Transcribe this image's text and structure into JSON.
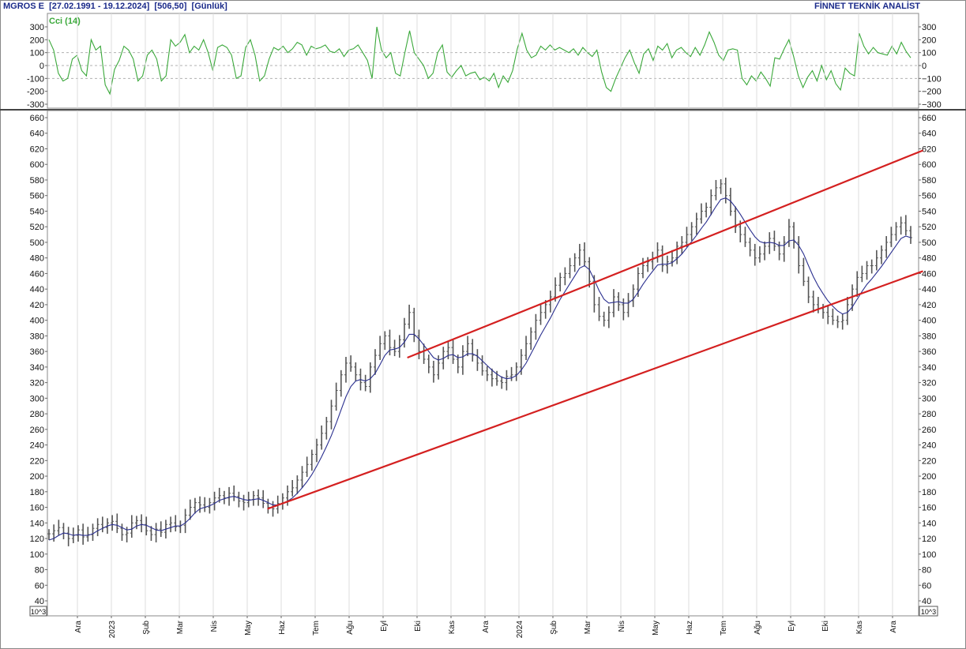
{
  "header": {
    "symbol": "MGROS E",
    "range": "[27.02.1991 - 19.12.2024]",
    "last": "[506,50]",
    "period": "[Günlük]",
    "brand": "FİNNET TEKNİK ANALİST"
  },
  "colors": {
    "cci": "#3aa83a",
    "price": "#555555",
    "ma": "#2a2f8f",
    "channel": "#d42020",
    "header": "#1a2a8a"
  },
  "chart_data": [
    {
      "type": "line",
      "name": "cci-panel",
      "series": [
        {
          "name": "Cci (14)",
          "values": [
            200,
            120,
            -60,
            -120,
            -100,
            50,
            80,
            -40,
            -80,
            200,
            120,
            150,
            -150,
            -220,
            -30,
            40,
            150,
            120,
            50,
            -120,
            -80,
            80,
            120,
            50,
            -120,
            -80,
            200,
            150,
            180,
            240,
            100,
            150,
            120,
            200,
            100,
            -40,
            140,
            160,
            140,
            80,
            -100,
            -80,
            140,
            200,
            80,
            -120,
            -80,
            50,
            140,
            120,
            150,
            100,
            130,
            180,
            160,
            80,
            150,
            130,
            140,
            160,
            110,
            100,
            130,
            70,
            120,
            130,
            160,
            100,
            40,
            -100,
            300,
            120,
            60,
            100,
            -60,
            -80,
            100,
            270,
            100,
            50,
            0,
            -100,
            -60,
            100,
            160,
            -50,
            -90,
            -40,
            0,
            -80,
            -60,
            -50,
            -110,
            -90,
            -120,
            -60,
            -170,
            -80,
            -130,
            -40,
            130,
            250,
            120,
            60,
            80,
            150,
            120,
            160,
            120,
            140,
            120,
            100,
            130,
            80,
            140,
            100,
            70,
            120,
            -50,
            -170,
            -200,
            -100,
            -20,
            60,
            120,
            20,
            -60,
            90,
            130,
            40,
            150,
            120,
            170,
            60,
            120,
            140,
            100,
            70,
            140,
            80,
            160,
            260,
            180,
            80,
            40,
            120,
            130,
            120,
            -100,
            -150,
            -80,
            -120,
            -50,
            -100,
            -160,
            60,
            50,
            130,
            200,
            70,
            -80,
            -170,
            -90,
            -40,
            -120,
            0,
            -110,
            -40,
            -140,
            -190,
            -20,
            -60,
            -80,
            250,
            150,
            90,
            140,
            100,
            90,
            80,
            150,
            90,
            180,
            110,
            60
          ]
        }
      ],
      "ylim": [
        -310,
        340
      ],
      "yticks": [
        "300",
        "200",
        "100",
        "0",
        "-100",
        "-200",
        "-300"
      ],
      "yticks_right": [
        "300",
        "200",
        "100",
        "0",
        "−100",
        "−200",
        "−300"
      ],
      "reference_lines": [
        100,
        0,
        -100
      ]
    },
    {
      "type": "line",
      "name": "price-panel",
      "x_ticks": [
        "Ara",
        "2023",
        "Şub",
        "Mar",
        "Nis",
        "May",
        "Haz",
        "Tem",
        "Ağu",
        "Eyl",
        "Eki",
        "Kas",
        "Ara",
        "2024",
        "Şub",
        "Mar",
        "Nis",
        "May",
        "Haz",
        "Tem",
        "Ağu",
        "Eyl",
        "Eki",
        "Kas",
        "Ara"
      ],
      "series": [
        {
          "name": "price",
          "values": [
            126,
            130,
            134,
            127,
            120,
            124,
            131,
            122,
            125,
            133,
            138,
            134,
            140,
            142,
            133,
            125,
            127,
            140,
            143,
            138,
            130,
            125,
            132,
            128,
            138,
            140,
            135,
            137,
            150,
            160,
            166,
            163,
            160,
            166,
            172,
            175,
            172,
            178,
            174,
            168,
            166,
            170,
            175,
            172,
            165,
            160,
            158,
            165,
            172,
            180,
            185,
            195,
            205,
            215,
            228,
            240,
            255,
            270,
            290,
            310,
            330,
            345,
            340,
            330,
            320,
            315,
            340,
            355,
            370,
            380,
            365,
            360,
            375,
            395,
            410,
            380,
            360,
            350,
            340,
            330,
            345,
            360,
            365,
            350,
            340,
            360,
            370,
            355,
            345,
            335,
            330,
            325,
            322,
            320,
            328,
            330,
            340,
            355,
            370,
            385,
            400,
            410,
            420,
            430,
            445,
            455,
            460,
            470,
            480,
            490,
            475,
            450,
            420,
            405,
            400,
            410,
            430,
            420,
            410,
            425,
            440,
            460,
            470,
            475,
            480,
            490,
            470,
            475,
            480,
            495,
            500,
            510,
            520,
            530,
            540,
            545,
            560,
            570,
            575,
            560,
            540,
            520,
            510,
            500,
            490,
            480,
            485,
            495,
            505,
            495,
            485,
            500,
            520,
            500,
            470,
            450,
            430,
            420,
            415,
            410,
            405,
            400,
            398,
            400,
            420,
            440,
            455,
            460,
            470,
            470,
            480,
            490,
            500,
            510,
            520,
            525,
            515,
            506
          ]
        },
        {
          "name": "ma",
          "values": [
            118,
            120,
            124,
            127,
            126,
            124,
            125,
            124,
            124,
            126,
            130,
            133,
            136,
            138,
            137,
            134,
            131,
            132,
            136,
            138,
            137,
            134,
            131,
            130,
            132,
            134,
            136,
            136,
            140,
            146,
            153,
            158,
            160,
            162,
            165,
            169,
            171,
            173,
            174,
            172,
            170,
            169,
            170,
            171,
            169,
            166,
            163,
            163,
            165,
            168,
            172,
            178,
            185,
            193,
            202,
            213,
            225,
            238,
            252,
            268,
            285,
            302,
            315,
            322,
            324,
            322,
            325,
            332,
            343,
            355,
            362,
            363,
            365,
            372,
            382,
            382,
            376,
            368,
            360,
            352,
            349,
            351,
            355,
            356,
            352,
            353,
            357,
            357,
            354,
            348,
            342,
            336,
            331,
            327,
            325,
            326,
            329,
            336,
            345,
            357,
            369,
            381,
            392,
            403,
            415,
            427,
            437,
            447,
            457,
            467,
            470,
            465,
            452,
            438,
            427,
            422,
            423,
            424,
            422,
            422,
            427,
            436,
            446,
            455,
            463,
            471,
            472,
            472,
            474,
            479,
            485,
            493,
            501,
            509,
            518,
            526,
            536,
            546,
            555,
            557,
            553,
            545,
            536,
            526,
            516,
            507,
            501,
            499,
            500,
            499,
            496,
            496,
            502,
            503,
            496,
            485,
            470,
            456,
            444,
            434,
            425,
            418,
            412,
            408,
            410,
            417,
            427,
            437,
            446,
            453,
            461,
            469,
            478,
            487,
            496,
            505,
            508,
            506
          ]
        }
      ],
      "trendlines": [
        {
          "name": "upper-channel",
          "from": [
            82,
            352
          ],
          "to": [
            200,
            618
          ]
        },
        {
          "name": "lower-channel",
          "from": [
            50,
            158
          ],
          "to": [
            200,
            463
          ]
        }
      ],
      "ylim": [
        40,
        660
      ],
      "yticks": [
        "660",
        "640",
        "620",
        "600",
        "580",
        "560",
        "540",
        "520",
        "500",
        "480",
        "460",
        "440",
        "420",
        "400",
        "380",
        "360",
        "340",
        "320",
        "300",
        "280",
        "260",
        "240",
        "220",
        "200",
        "180",
        "160",
        "140",
        "120",
        "100",
        "80",
        "60",
        "40"
      ],
      "unit_label": "10^3"
    }
  ]
}
